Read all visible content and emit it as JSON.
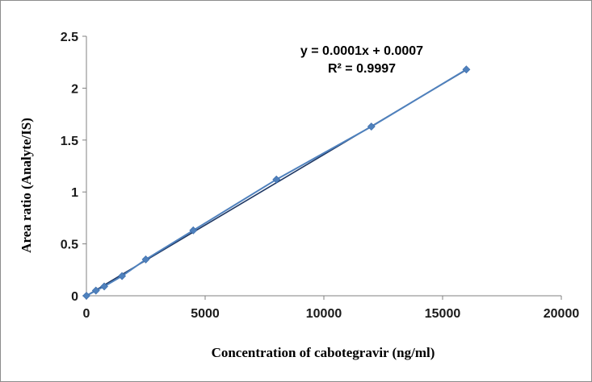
{
  "chart_data": {
    "type": "scatter",
    "title": "",
    "xlabel": "Concentration of cabotegravir (ng/ml)",
    "ylabel": "Area ratio (Analyte/IS)",
    "xlim": [
      0,
      20000
    ],
    "ylim": [
      0,
      2.5
    ],
    "x_ticks": [
      "0",
      "5000",
      "10000",
      "15000",
      "20000"
    ],
    "y_ticks": [
      "0",
      "0.5",
      "1",
      "1.5",
      "2",
      "2.5"
    ],
    "grid": false,
    "legend": "none",
    "series": [
      {
        "color": "#4f81bd",
        "marker": "diamond",
        "x": [
          0,
          400,
          750,
          1500,
          2500,
          4500,
          8000,
          12000,
          16000
        ],
        "y": [
          0.0,
          0.05,
          0.09,
          0.19,
          0.35,
          0.63,
          1.12,
          1.63,
          2.18
        ]
      }
    ],
    "trendline": {
      "color": "#1f3864",
      "slope": 0.000136,
      "intercept": 0.0007,
      "x_range": [
        0,
        16000
      ],
      "equation": "y = 0.0001x + 0.0007",
      "r_squared": "R² = 0.9997"
    }
  }
}
